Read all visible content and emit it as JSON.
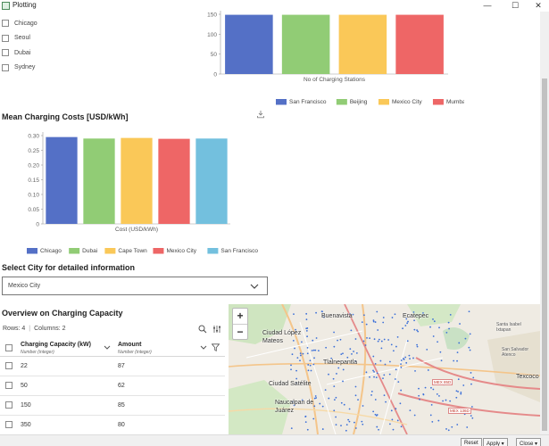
{
  "window": {
    "title": "Plotting",
    "minimize": "—",
    "maximize": "☐",
    "close": "✕"
  },
  "city_checkboxes": [
    "Chicago",
    "Seoul",
    "Dubai",
    "Sydney"
  ],
  "chart_stations": {
    "type": "bar",
    "categories": [
      "San Francisco",
      "Beijing",
      "Mexico City",
      "Mumbai"
    ],
    "values": [
      155,
      155,
      155,
      155
    ],
    "xlabel": "No of Charging Stations",
    "yticks": [
      "150",
      "100",
      "50",
      "0"
    ],
    "ylim": [
      0,
      175
    ],
    "colors": [
      "#5470c6",
      "#91cc75",
      "#fac858",
      "#ee6666"
    ]
  },
  "chart_data": {
    "type": "bar",
    "title": "Mean Charging Costs [USD/kWh]",
    "categories": [
      "Chicago",
      "Dubai",
      "Cape Town",
      "Mexico City",
      "San Francisco"
    ],
    "values": [
      0.295,
      0.29,
      0.292,
      0.289,
      0.29
    ],
    "xlabel": "Cost (USD/kWh)",
    "yticks": [
      "0.30",
      "0.25",
      "0.20",
      "0.15",
      "0.10",
      "0.05",
      "0"
    ],
    "ylim": [
      0,
      0.3
    ],
    "colors": [
      "#5470c6",
      "#91cc75",
      "#fac858",
      "#ee6666",
      "#73c0de"
    ]
  },
  "select_city": {
    "heading": "Select City for detailed information",
    "value": "Mexico City"
  },
  "overview": {
    "heading": "Overview on Charging Capacity",
    "rows_label": "Rows: 4",
    "columns_label": "Columns: 2",
    "columns": [
      {
        "name": "Charging Capacity (kW)",
        "type": "Number (integer)"
      },
      {
        "name": "Amount",
        "type": "Number (integer)"
      }
    ],
    "rows": [
      [
        "22",
        "87"
      ],
      [
        "50",
        "62"
      ],
      [
        "150",
        "85"
      ],
      [
        "350",
        "80"
      ]
    ]
  },
  "map": {
    "zoom_in": "+",
    "zoom_out": "−",
    "labels": {
      "buenavista": "Buenavista",
      "ecatepec": "Ecatepec",
      "ciudad_lopez_mateos": "Ciudad López Mateos",
      "tlalnepantla": "Tlalnepantla",
      "ciudad_satelite": "Ciudad Satélite",
      "naucalpan": "Naucalpan de Juárez",
      "texcoco": "Texcoco",
      "santa_isabel": "Santa Isabel Ixtapan",
      "san_salvador": "San Salvador Atenco"
    },
    "highways": [
      "MEX 85D",
      "MEX 136D"
    ]
  },
  "bottom_buttons": [
    "Reset",
    "Apply ▾",
    "Close ▾"
  ]
}
